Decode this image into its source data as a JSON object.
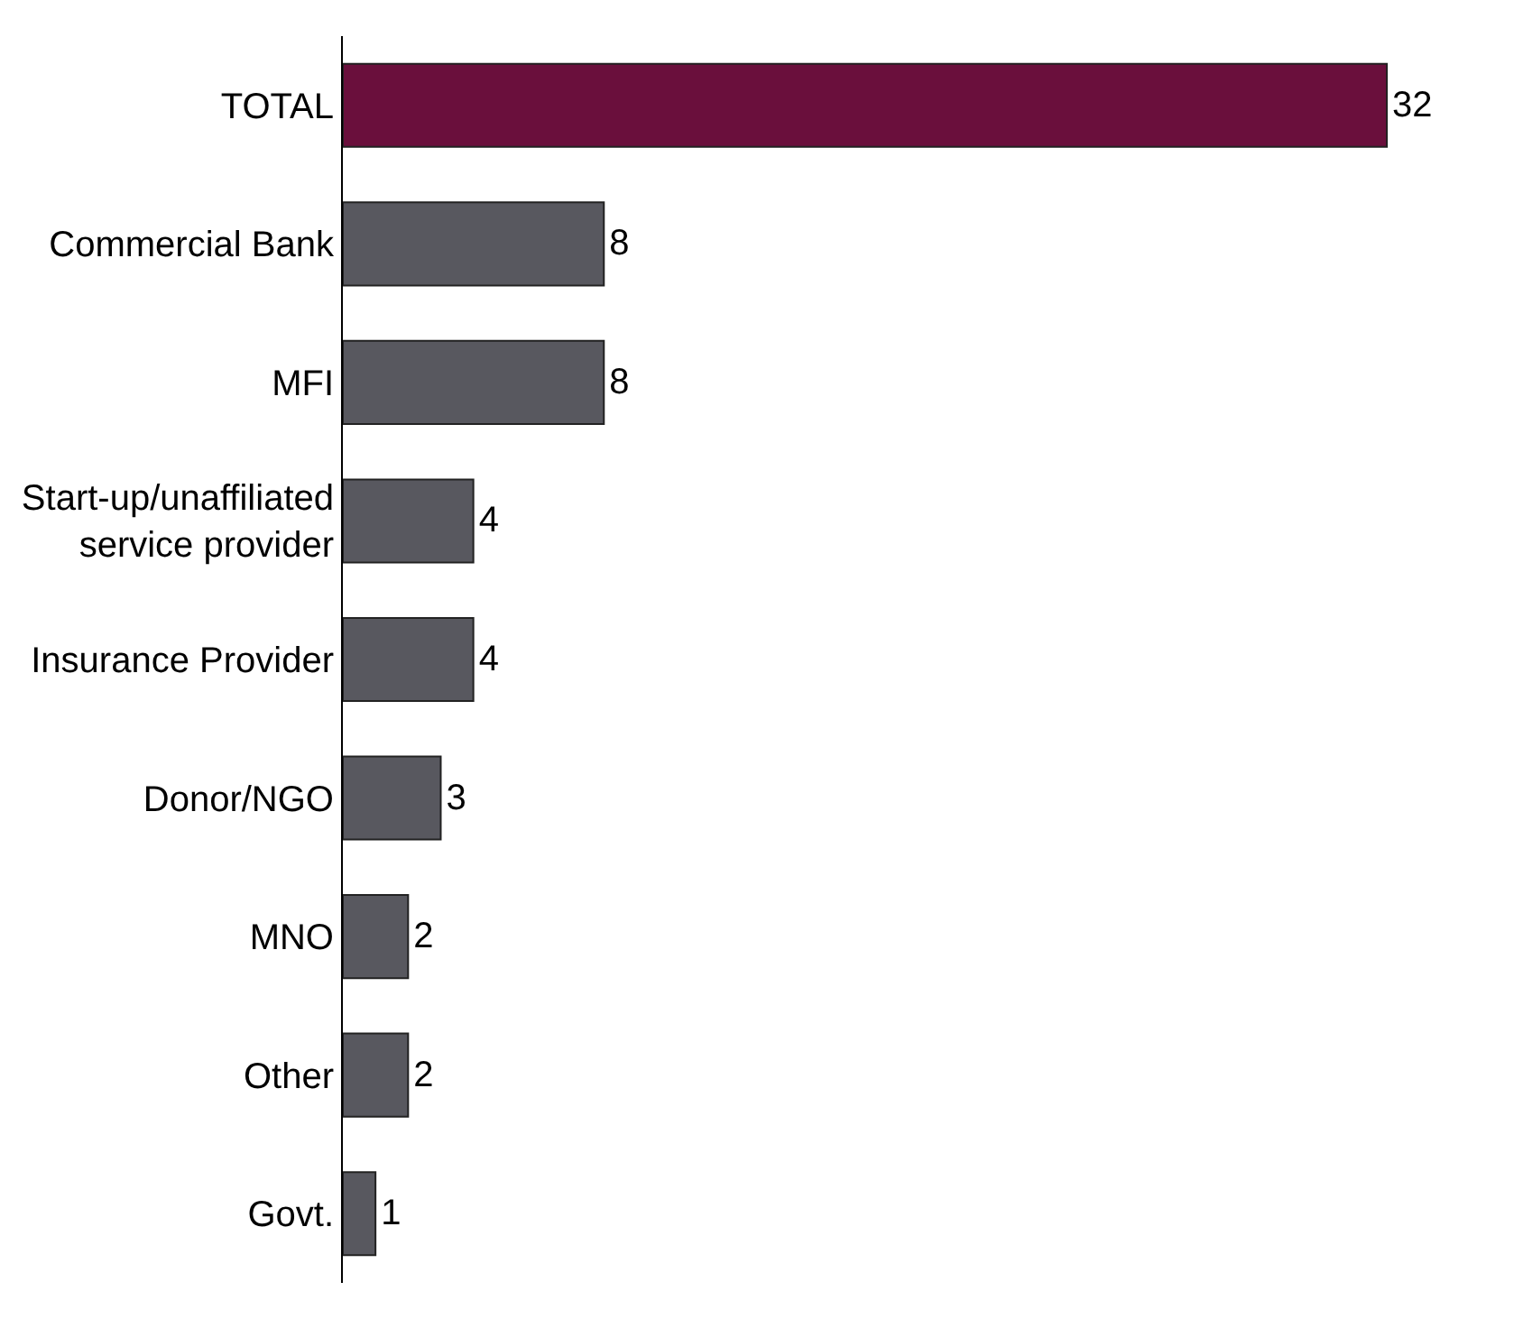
{
  "chart_data": {
    "type": "bar",
    "orientation": "horizontal",
    "categories": [
      "TOTAL",
      "Commercial Bank",
      "MFI",
      "Start-up/unaffiliated service provider",
      "Insurance Provider",
      "Donor/NGO",
      "MNO",
      "Other",
      "Govt."
    ],
    "values": [
      32,
      8,
      8,
      4,
      4,
      3,
      2,
      2,
      1
    ],
    "colors": [
      "#6a0f3c",
      "#58585f",
      "#58585f",
      "#58585f",
      "#58585f",
      "#58585f",
      "#58585f",
      "#58585f",
      "#58585f"
    ],
    "tick_labels": "y",
    "data_labels": true
  }
}
